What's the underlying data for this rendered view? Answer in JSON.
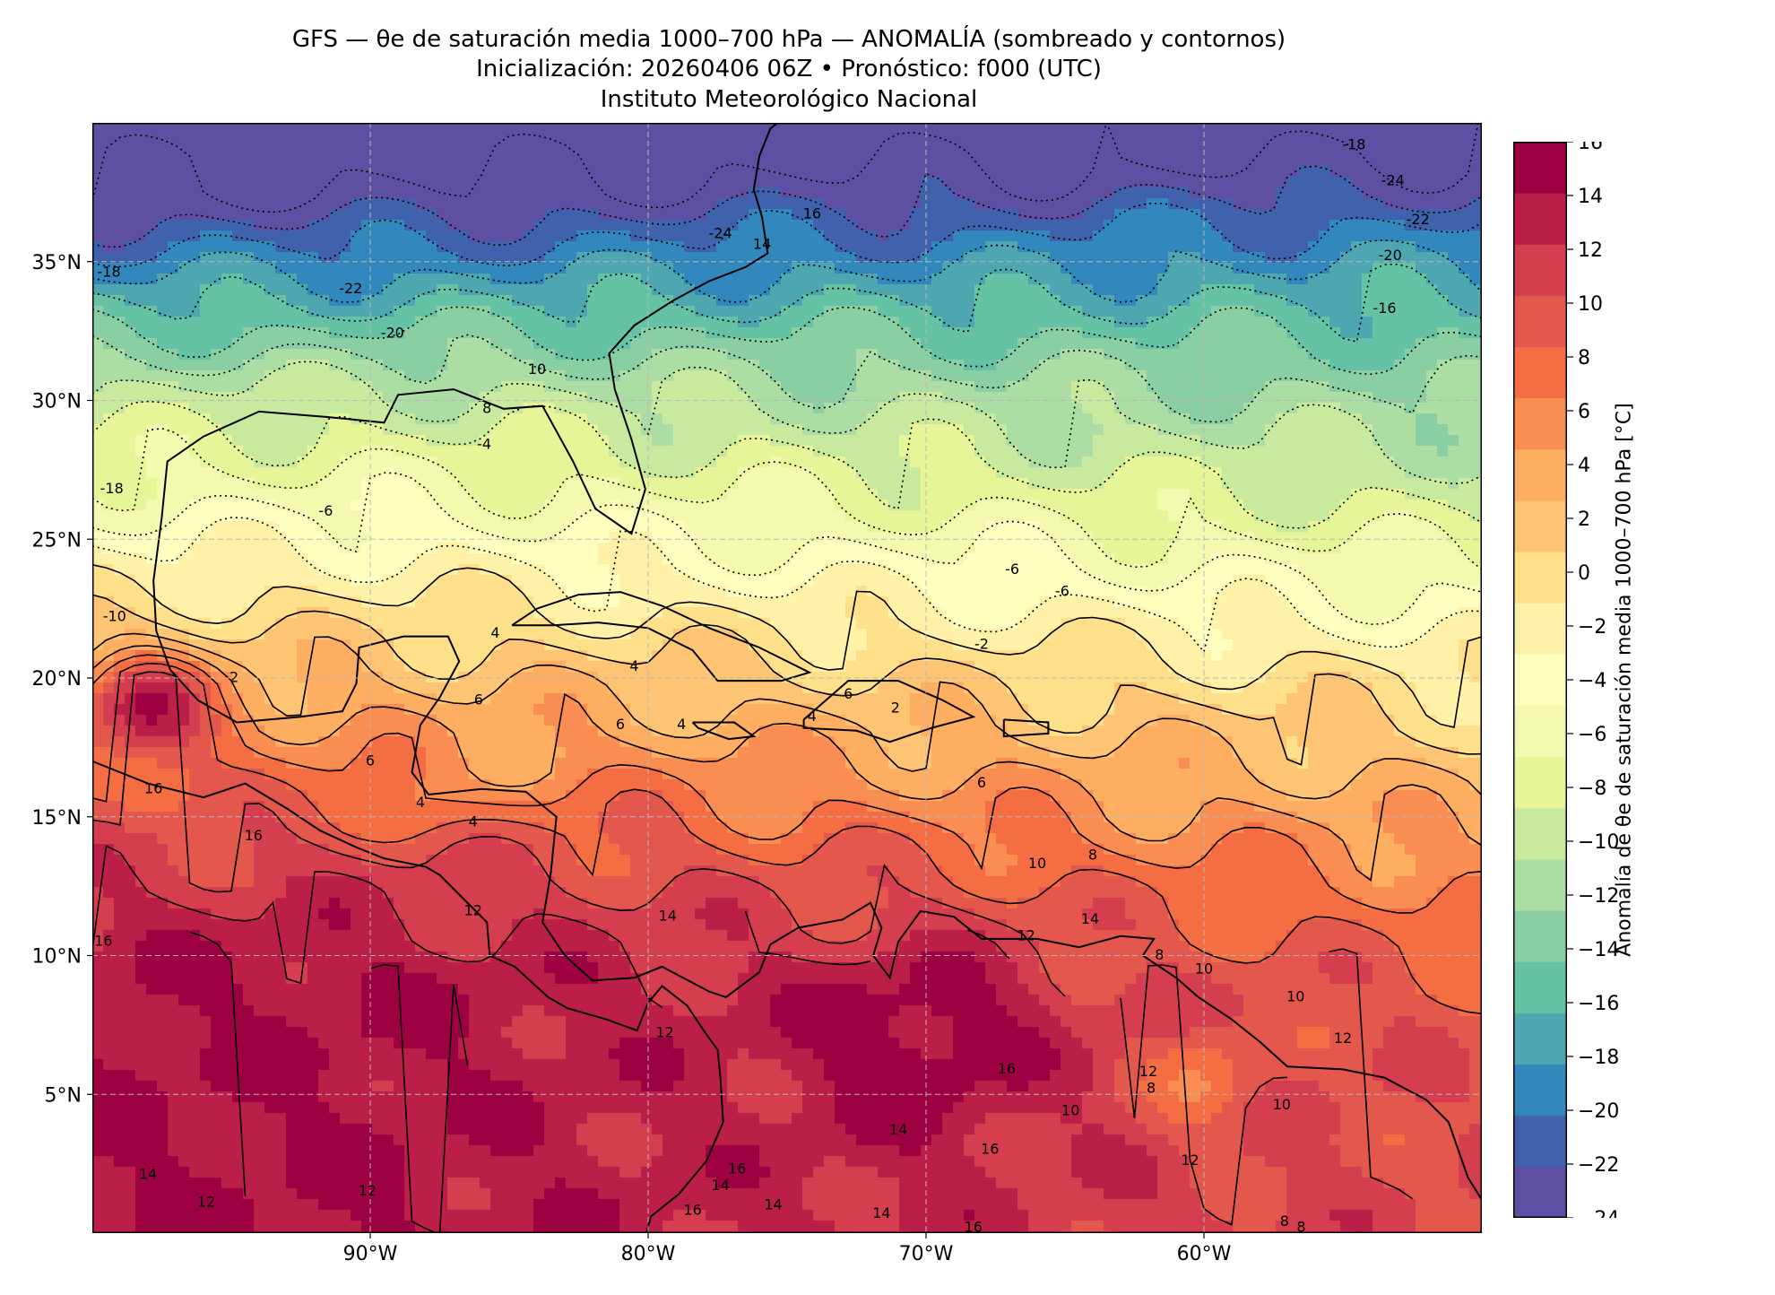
{
  "title": {
    "main": "GFS — θe de saturación media 1000–700 hPa — ANOMALÍA (sombreado y contornos)",
    "init": "Inicialización: 20260406 06Z   •   Pronóstico: f000 (UTC)",
    "institution": "Instituto Meteorológico Nacional"
  },
  "map": {
    "extent_lon": [
      -100,
      -50
    ],
    "extent_lat": [
      0,
      40
    ],
    "lon_ticks": [
      {
        "value": -90,
        "label": "90°W"
      },
      {
        "value": -80,
        "label": "80°W"
      },
      {
        "value": -70,
        "label": "70°W"
      },
      {
        "value": -60,
        "label": "60°W"
      }
    ],
    "lat_ticks": [
      {
        "value": 35,
        "label": "35°N"
      },
      {
        "value": 30,
        "label": "30°N"
      },
      {
        "value": 25,
        "label": "25°N"
      },
      {
        "value": 20,
        "label": "20°N"
      },
      {
        "value": 15,
        "label": "15°N"
      },
      {
        "value": 10,
        "label": "10°N"
      },
      {
        "value": 5,
        "label": "5°N"
      }
    ],
    "gridlines": true,
    "contour_labels": [
      {
        "text": "-24",
        "lon": -77.4,
        "lat": 36.0
      },
      {
        "text": "-22",
        "lon": -90.7,
        "lat": 34.0
      },
      {
        "text": "-20",
        "lon": -89.2,
        "lat": 32.4
      },
      {
        "text": "-18",
        "lon": -99.4,
        "lat": 34.6
      },
      {
        "text": "-18",
        "lon": -99.3,
        "lat": 26.8
      },
      {
        "text": "-18",
        "lon": -54.6,
        "lat": 39.2
      },
      {
        "text": "-24",
        "lon": -53.2,
        "lat": 37.9
      },
      {
        "text": "-22",
        "lon": -52.3,
        "lat": 36.5
      },
      {
        "text": "-20",
        "lon": -53.3,
        "lat": 35.2
      },
      {
        "text": "-16",
        "lon": -53.5,
        "lat": 33.3
      },
      {
        "text": "16",
        "lon": -74.1,
        "lat": 36.7
      },
      {
        "text": "14",
        "lon": -75.9,
        "lat": 35.6
      },
      {
        "text": "10",
        "lon": -84.0,
        "lat": 31.1
      },
      {
        "text": "8",
        "lon": -85.8,
        "lat": 29.7
      },
      {
        "text": "-4",
        "lon": -85.9,
        "lat": 28.4
      },
      {
        "text": "-6",
        "lon": -91.6,
        "lat": 26.0
      },
      {
        "text": "-6",
        "lon": -66.9,
        "lat": 23.9
      },
      {
        "text": "-6",
        "lon": -65.1,
        "lat": 23.1
      },
      {
        "text": "-2",
        "lon": -68.0,
        "lat": 21.2
      },
      {
        "text": "4",
        "lon": -85.5,
        "lat": 21.6
      },
      {
        "text": "4",
        "lon": -80.5,
        "lat": 20.4
      },
      {
        "text": "2",
        "lon": -94.9,
        "lat": 20.0
      },
      {
        "text": "6",
        "lon": -86.1,
        "lat": 19.2
      },
      {
        "text": "6",
        "lon": -81.0,
        "lat": 18.3
      },
      {
        "text": "4",
        "lon": -78.8,
        "lat": 18.3
      },
      {
        "text": "4",
        "lon": -74.1,
        "lat": 18.6
      },
      {
        "text": "6",
        "lon": -72.8,
        "lat": 19.4
      },
      {
        "text": "2",
        "lon": -71.1,
        "lat": 18.9
      },
      {
        "text": "6",
        "lon": -90.0,
        "lat": 17.0
      },
      {
        "text": "4",
        "lon": -88.2,
        "lat": 15.5
      },
      {
        "text": "4",
        "lon": -86.3,
        "lat": 14.8
      },
      {
        "text": "6",
        "lon": -68.0,
        "lat": 16.2
      },
      {
        "text": "8",
        "lon": -64.0,
        "lat": 13.6
      },
      {
        "text": "10",
        "lon": -66.0,
        "lat": 13.3
      },
      {
        "text": "14",
        "lon": -79.3,
        "lat": 11.4
      },
      {
        "text": "12",
        "lon": -86.3,
        "lat": 11.6
      },
      {
        "text": "16",
        "lon": -97.8,
        "lat": 16.0
      },
      {
        "text": "16",
        "lon": -94.2,
        "lat": 14.3
      },
      {
        "text": "16",
        "lon": -99.6,
        "lat": 10.5
      },
      {
        "text": "14",
        "lon": -64.1,
        "lat": 11.3
      },
      {
        "text": "12",
        "lon": -66.4,
        "lat": 10.7
      },
      {
        "text": "8",
        "lon": -61.6,
        "lat": 10.0
      },
      {
        "text": "10",
        "lon": -60.0,
        "lat": 9.5
      },
      {
        "text": "10",
        "lon": -56.7,
        "lat": 8.5
      },
      {
        "text": "12",
        "lon": -55.0,
        "lat": 7.0
      },
      {
        "text": "12",
        "lon": -62.0,
        "lat": 5.8
      },
      {
        "text": "8",
        "lon": -61.9,
        "lat": 5.2
      },
      {
        "text": "10",
        "lon": -64.8,
        "lat": 4.4
      },
      {
        "text": "10",
        "lon": -57.2,
        "lat": 4.6
      },
      {
        "text": "12",
        "lon": -60.5,
        "lat": 2.6
      },
      {
        "text": "16",
        "lon": -67.1,
        "lat": 5.9
      },
      {
        "text": "12",
        "lon": -79.4,
        "lat": 7.2
      },
      {
        "text": "14",
        "lon": -71.0,
        "lat": 3.7
      },
      {
        "text": "16",
        "lon": -67.7,
        "lat": 3.0
      },
      {
        "text": "16",
        "lon": -76.8,
        "lat": 2.3
      },
      {
        "text": "14",
        "lon": -77.4,
        "lat": 1.7
      },
      {
        "text": "16",
        "lon": -78.4,
        "lat": 0.8
      },
      {
        "text": "14",
        "lon": -75.5,
        "lat": 1.0
      },
      {
        "text": "14",
        "lon": -71.6,
        "lat": 0.7
      },
      {
        "text": "16",
        "lon": -68.3,
        "lat": 0.2
      },
      {
        "text": "14",
        "lon": -98.0,
        "lat": 2.1
      },
      {
        "text": "12",
        "lon": -95.9,
        "lat": 1.1
      },
      {
        "text": "12",
        "lon": -90.1,
        "lat": 1.5
      },
      {
        "text": "8",
        "lon": -57.1,
        "lat": 0.4
      },
      {
        "text": "8",
        "lon": -56.5,
        "lat": 0.2
      },
      {
        "text": "-10",
        "lon": -99.2,
        "lat": 22.2
      }
    ]
  },
  "colorbar": {
    "title": "Anomalía de θe de saturación media 1000–700 hPa [°C]",
    "levels": [
      -24,
      -22,
      -20,
      -18,
      -16,
      -14,
      -12,
      -10,
      -8,
      -6,
      -4,
      -2,
      0,
      2,
      4,
      6,
      8,
      10,
      12,
      14,
      16
    ],
    "colors": [
      "#5e4fa2",
      "#4062ad",
      "#3288bd",
      "#4da6b0",
      "#66c2a5",
      "#8acfa4",
      "#abdda4",
      "#c9e99e",
      "#e6f598",
      "#f3fab0",
      "#ffffbf",
      "#fff1a8",
      "#fee08b",
      "#fdc473",
      "#fdae61",
      "#f98d52",
      "#f46d43",
      "#e4574d",
      "#d53e4f",
      "#bb1f48",
      "#9e0142"
    ],
    "tick_labels": [
      "16",
      "14",
      "12",
      "10",
      "8",
      "6",
      "4",
      "2",
      "0",
      "−2",
      "−4",
      "−6",
      "−8",
      "−10",
      "−12",
      "−14",
      "−16",
      "−18",
      "−20",
      "−22",
      "−24"
    ]
  }
}
